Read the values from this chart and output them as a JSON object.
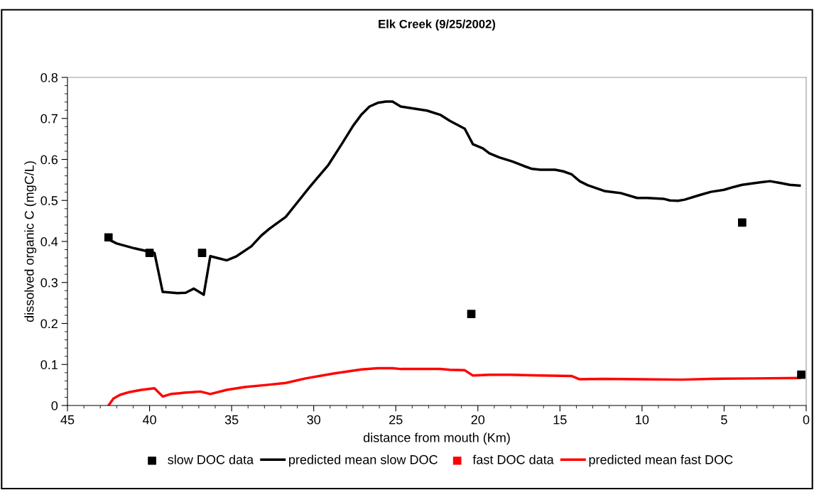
{
  "chart_data": {
    "type": "line",
    "title": "Elk Creek (9/25/2002)",
    "xlabel": "distance from mouth (Km)",
    "ylabel": "dissolved organic C (mgC/L)",
    "xlim": [
      45,
      0
    ],
    "xticks": [
      45,
      40,
      35,
      30,
      25,
      20,
      15,
      10,
      5,
      0
    ],
    "ylim": [
      0,
      0.8
    ],
    "yticks": [
      0,
      0.1,
      0.2,
      0.3,
      0.4,
      0.5,
      0.6,
      0.7,
      0.8
    ],
    "grid": false,
    "legend": "bottom",
    "series": [
      {
        "name": "slow DOC data",
        "type": "scatter",
        "marker": "square",
        "color": "#000000",
        "x": [
          42.5,
          40.0,
          36.8,
          20.4,
          3.9,
          0.3
        ],
        "values": [
          0.41,
          0.372,
          0.372,
          0.223,
          0.446,
          0.075
        ]
      },
      {
        "name": "predicted mean slow DOC",
        "marker": "none",
        "color": "#000000",
        "x": [
          42.5,
          42.0,
          40.9,
          40.0,
          39.7,
          39.2,
          38.3,
          37.8,
          37.3,
          36.7,
          36.3,
          35.7,
          35.3,
          34.7,
          33.8,
          33.2,
          32.7,
          31.7,
          31.1,
          30.3,
          29.8,
          29.1,
          28.3,
          27.6,
          27.1,
          26.6,
          26.1,
          25.6,
          25.2,
          24.7,
          23.1,
          22.3,
          21.7,
          20.8,
          20.3,
          19.7,
          19.3,
          18.7,
          17.9,
          17.2,
          16.7,
          16.2,
          15.3,
          14.8,
          14.3,
          13.8,
          13.3,
          12.3,
          11.7,
          11.3,
          10.3,
          9.7,
          8.7,
          8.3,
          7.8,
          7.4,
          6.5,
          5.8,
          5.0,
          4.4,
          3.9,
          2.8,
          2.2,
          1.5,
          1.0,
          0.4
        ],
        "values": [
          0.405,
          0.395,
          0.383,
          0.375,
          0.372,
          0.277,
          0.274,
          0.275,
          0.285,
          0.27,
          0.364,
          0.358,
          0.354,
          0.364,
          0.388,
          0.414,
          0.431,
          0.46,
          0.49,
          0.53,
          0.554,
          0.587,
          0.637,
          0.682,
          0.709,
          0.729,
          0.738,
          0.741,
          0.741,
          0.729,
          0.719,
          0.709,
          0.694,
          0.675,
          0.637,
          0.627,
          0.615,
          0.605,
          0.595,
          0.584,
          0.577,
          0.575,
          0.575,
          0.571,
          0.564,
          0.547,
          0.537,
          0.523,
          0.52,
          0.518,
          0.506,
          0.506,
          0.504,
          0.5,
          0.499,
          0.502,
          0.513,
          0.521,
          0.526,
          0.533,
          0.538,
          0.544,
          0.547,
          0.542,
          0.538,
          0.536
        ]
      },
      {
        "name": "fast DOC data",
        "type": "scatter",
        "marker": "square",
        "color": "#ff0000"
      },
      {
        "name": "predicted mean fast DOC",
        "marker": "none",
        "color": "#ff0000",
        "x": [
          42.5,
          42.2,
          41.8,
          41.2,
          40.5,
          39.7,
          39.2,
          38.7,
          37.9,
          36.9,
          36.3,
          35.3,
          34.2,
          32.9,
          31.7,
          30.5,
          28.8,
          27.1,
          26.1,
          25.2,
          24.7,
          23.1,
          22.3,
          21.7,
          20.8,
          20.3,
          19.3,
          18.0,
          16.2,
          14.3,
          13.8,
          12.3,
          10.2,
          7.6,
          5.8,
          3.2,
          0.4
        ],
        "values": [
          0,
          0.017,
          0.026,
          0.033,
          0.038,
          0.042,
          0.022,
          0.028,
          0.031,
          0.034,
          0.028,
          0.038,
          0.045,
          0.05,
          0.055,
          0.066,
          0.078,
          0.088,
          0.091,
          0.091,
          0.089,
          0.089,
          0.089,
          0.087,
          0.086,
          0.073,
          0.075,
          0.075,
          0.073,
          0.072,
          0.064,
          0.065,
          0.064,
          0.063,
          0.065,
          0.066,
          0.067
        ]
      }
    ]
  }
}
